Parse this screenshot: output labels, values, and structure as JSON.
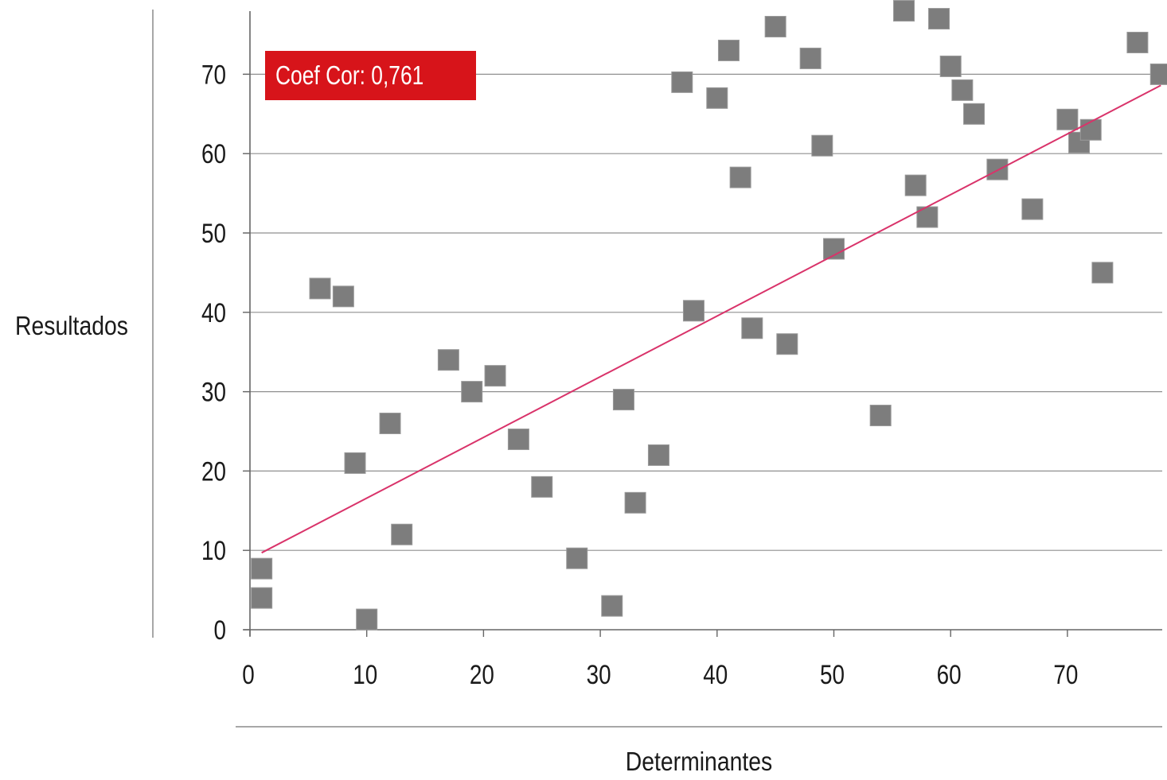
{
  "chart_data": {
    "type": "scatter",
    "title": "",
    "xlabel": "Determinantes",
    "ylabel": "Resultados",
    "xlim": [
      0,
      78
    ],
    "ylim": [
      0,
      78
    ],
    "xticks": [
      0,
      10,
      20,
      30,
      40,
      50,
      60,
      70
    ],
    "yticks": [
      0,
      10,
      20,
      30,
      40,
      50,
      60,
      70
    ],
    "grid": "horizontal",
    "legend": "none",
    "annotation": {
      "text": "Coef Cor: 0,761",
      "color": "#d7141a"
    },
    "trendline": {
      "x": [
        1,
        78
      ],
      "y": [
        9.7,
        68.6
      ],
      "color": "#d9336a"
    },
    "marker_color": "#7d7d7d",
    "series": [
      {
        "values": [
          [
            1,
            7.7
          ],
          [
            1,
            4
          ],
          [
            6,
            43
          ],
          [
            8,
            42
          ],
          [
            9,
            21
          ],
          [
            10,
            1.3
          ],
          [
            12,
            26
          ],
          [
            13,
            12
          ],
          [
            17,
            34
          ],
          [
            19,
            30
          ],
          [
            21,
            32
          ],
          [
            23,
            24
          ],
          [
            25,
            18
          ],
          [
            28,
            9
          ],
          [
            31,
            3
          ],
          [
            32,
            29
          ],
          [
            33,
            16
          ],
          [
            35,
            22
          ],
          [
            37,
            69
          ],
          [
            38,
            40.2
          ],
          [
            40,
            67
          ],
          [
            41,
            73
          ],
          [
            42,
            57
          ],
          [
            43,
            38
          ],
          [
            45,
            76
          ],
          [
            46,
            36
          ],
          [
            48,
            72
          ],
          [
            49,
            61
          ],
          [
            50,
            48
          ],
          [
            54,
            27
          ],
          [
            56,
            78
          ],
          [
            57,
            56
          ],
          [
            58,
            52
          ],
          [
            59,
            77
          ],
          [
            60,
            71
          ],
          [
            61,
            68
          ],
          [
            62,
            65
          ],
          [
            64,
            58
          ],
          [
            67,
            53
          ],
          [
            70,
            64.3
          ],
          [
            71,
            61.4
          ],
          [
            72,
            63
          ],
          [
            73,
            45
          ],
          [
            76,
            74
          ],
          [
            78,
            70
          ]
        ]
      }
    ]
  }
}
